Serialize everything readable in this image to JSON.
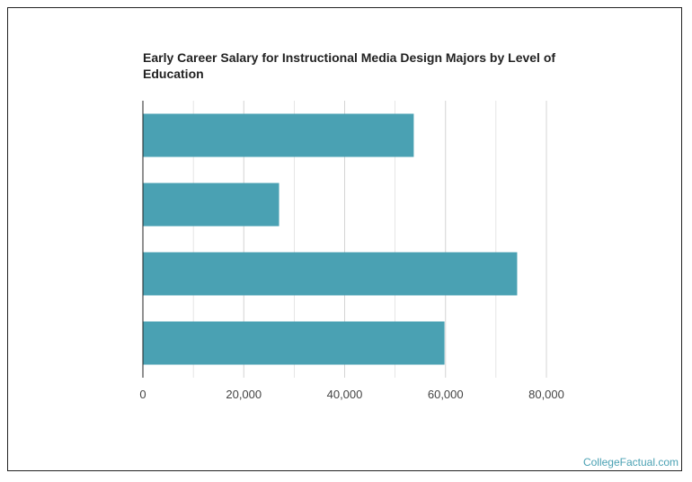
{
  "title": "Early Career Salary for Instructional Media Design Majors by Level of Education",
  "credit": "CollegeFactual.com",
  "colors": {
    "bar": "#4aa1b3",
    "grid": "#d4d4d4",
    "axis": "#222222"
  },
  "chart_data": {
    "type": "bar",
    "orientation": "horizontal",
    "title": "Early Career Salary for Instructional Media Design Majors by Level of Education",
    "categories": [
      "",
      "",
      "",
      ""
    ],
    "values": [
      53700,
      27000,
      74200,
      59800
    ],
    "xlim": [
      0,
      80000
    ],
    "x_ticks": [
      0,
      20000,
      40000,
      60000,
      80000
    ],
    "x_tick_labels": [
      "0",
      "20,000",
      "40,000",
      "60,000",
      "80,000"
    ],
    "xlabel": "",
    "ylabel": "",
    "grid": true
  }
}
